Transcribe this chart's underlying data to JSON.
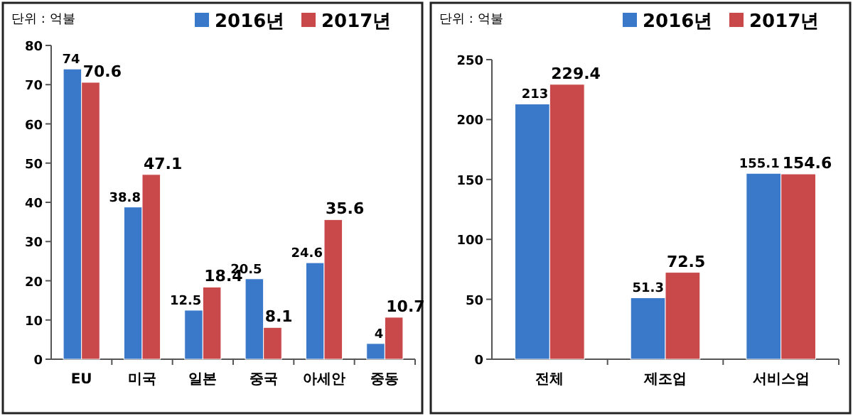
{
  "chart_data": [
    {
      "type": "bar",
      "annotations": [
        "단위 : 억불"
      ],
      "categories": [
        "EU",
        "미국",
        "일본",
        "중국",
        "아세안",
        "중동"
      ],
      "series": [
        {
          "name": "2016년",
          "color": "#3a78c9",
          "values": [
            74,
            38.8,
            12.5,
            20.5,
            24.6,
            4
          ]
        },
        {
          "name": "2017년",
          "color": "#c9494b",
          "values": [
            70.6,
            47.1,
            18.4,
            8.1,
            35.6,
            10.7
          ]
        }
      ],
      "ylim": [
        0,
        80
      ],
      "yticks": [
        0,
        10,
        20,
        30,
        40,
        50,
        60,
        70,
        80
      ],
      "data_labels": true,
      "legend": "top right"
    },
    {
      "type": "bar",
      "annotations": [
        "단위 : 억불"
      ],
      "categories": [
        "전체",
        "제조업",
        "서비스업"
      ],
      "series": [
        {
          "name": "2016년",
          "color": "#3a78c9",
          "values": [
            213,
            51.3,
            155.1
          ]
        },
        {
          "name": "2017년",
          "color": "#c9494b",
          "values": [
            229.4,
            72.5,
            154.6
          ]
        }
      ],
      "ylim": [
        0,
        250
      ],
      "yticks": [
        0,
        50,
        100,
        150,
        200,
        250
      ],
      "data_labels": true,
      "legend": "top right"
    }
  ]
}
